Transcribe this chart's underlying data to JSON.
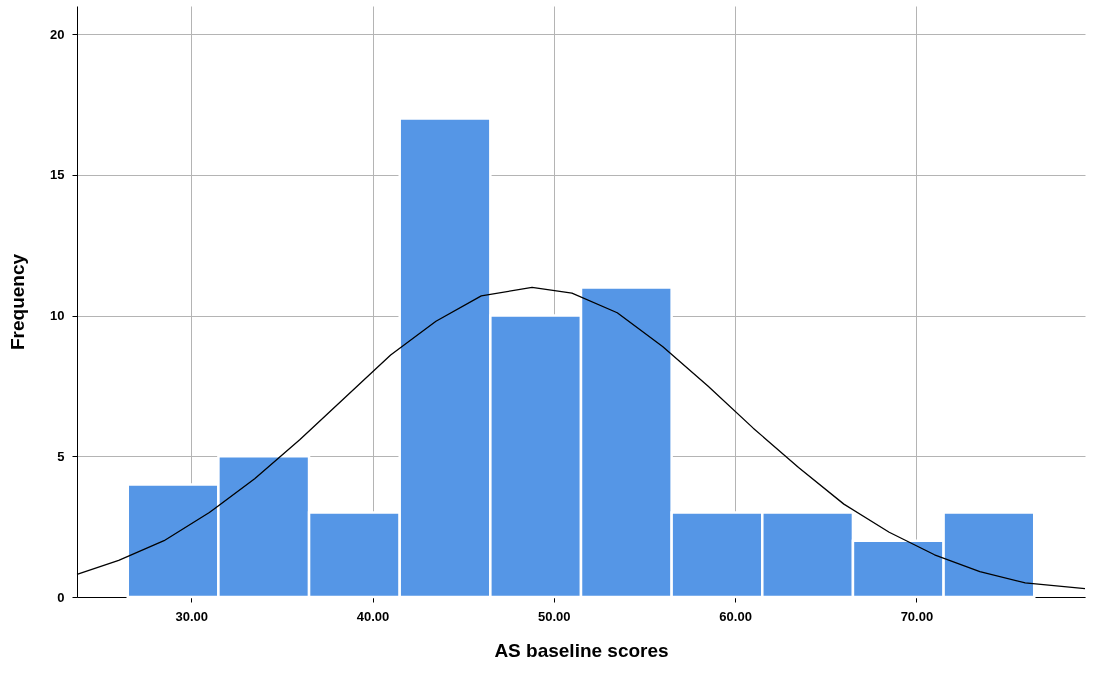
{
  "chart_data": {
    "type": "histogram",
    "xlabel": "AS baseline scores",
    "ylabel": "Frequency",
    "bins": [
      26.5,
      31.5,
      36.5,
      41.5,
      46.5,
      51.5,
      56.5,
      61.5,
      66.5,
      71.5,
      76.5
    ],
    "values": [
      4,
      5,
      3,
      17,
      10,
      11,
      3,
      3,
      2,
      3
    ],
    "color": "#5596e6",
    "series": [
      {
        "type": "line",
        "color": "#000000",
        "x": [
          23.7,
          26,
          28.5,
          31,
          33.5,
          36,
          38.5,
          41,
          43.5,
          46,
          48.8,
          51,
          53.5,
          56,
          58.5,
          61,
          63.5,
          66,
          68.5,
          71,
          73.5,
          76,
          79.3
        ],
        "values": [
          0.8,
          1.3,
          2.0,
          3.0,
          4.2,
          5.6,
          7.1,
          8.6,
          9.8,
          10.7,
          11.0,
          10.8,
          10.1,
          8.9,
          7.5,
          6.0,
          4.6,
          3.3,
          2.3,
          1.5,
          0.9,
          0.5,
          0.3
        ]
      }
    ],
    "xlim": [
      23.7,
      79.3
    ],
    "ylim": [
      0,
      21
    ],
    "xticks": [
      {
        "value": 30,
        "label": "30.00"
      },
      {
        "value": 40,
        "label": "40.00"
      },
      {
        "value": 50,
        "label": "50.00"
      },
      {
        "value": 60,
        "label": "60.00"
      },
      {
        "value": 70,
        "label": "70.00"
      }
    ],
    "yticks": [
      0,
      5,
      10,
      15,
      20
    ],
    "grid": true
  }
}
